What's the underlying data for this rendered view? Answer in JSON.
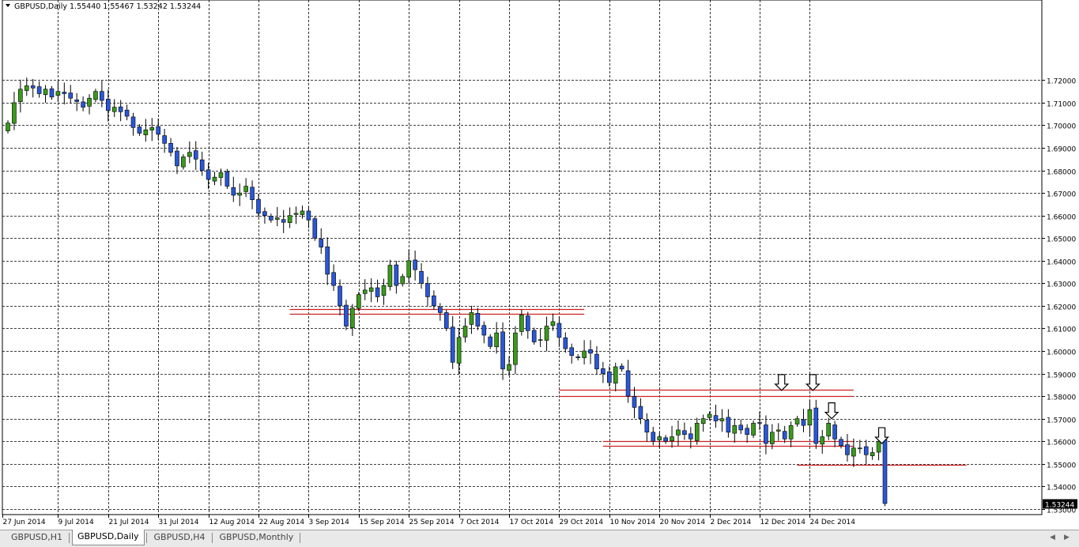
{
  "chart_data": {
    "type": "candlestick",
    "symbol_header": "GBPUSD,Daily",
    "ohlc_header": "1.55440 1.55467 1.53242 1.53244",
    "current_price_label": "1.53244",
    "ylim": [
      1.5275,
      1.7555
    ],
    "y_ticks": [
      "1.72000",
      "1.71000",
      "1.70000",
      "1.69000",
      "1.68000",
      "1.67000",
      "1.66000",
      "1.65000",
      "1.64000",
      "1.63000",
      "1.62000",
      "1.61000",
      "1.60000",
      "1.59000",
      "1.58000",
      "1.57000",
      "1.56000",
      "1.55000",
      "1.54000",
      "1.53000"
    ],
    "x_ticks": [
      {
        "i": 0,
        "label": "27 Jun 2014"
      },
      {
        "i": 8,
        "label": "9 Jul 2014"
      },
      {
        "i": 16,
        "label": "21 Jul 2014"
      },
      {
        "i": 24,
        "label": "31 Jul 2014"
      },
      {
        "i": 32,
        "label": "12 Aug 2014"
      },
      {
        "i": 40,
        "label": "22 Aug 2014"
      },
      {
        "i": 48,
        "label": "3 Sep 2014"
      },
      {
        "i": 56,
        "label": "15 Sep 2014"
      },
      {
        "i": 64,
        "label": "25 Sep 2014"
      },
      {
        "i": 72,
        "label": "7 Oct 2014"
      },
      {
        "i": 80,
        "label": "17 Oct 2014"
      },
      {
        "i": 88,
        "label": "29 Oct 2014"
      },
      {
        "i": 96,
        "label": "10 Nov 2014"
      },
      {
        "i": 104,
        "label": "20 Nov 2014"
      },
      {
        "i": 112,
        "label": "2 Dec 2014"
      },
      {
        "i": 120,
        "label": "12 Dec 2014"
      },
      {
        "i": 128,
        "label": "24 Dec 2014"
      }
    ],
    "bull_color": "#3a9a1a",
    "bear_color": "#2a57d8",
    "level_color": "#cc2222",
    "grid": true,
    "closes": [
      1.701,
      1.71,
      1.716,
      1.7175,
      1.7165,
      1.714,
      1.716,
      1.7125,
      1.715,
      1.714,
      1.712,
      1.7105,
      1.708,
      1.712,
      1.715,
      1.711,
      1.7065,
      1.708,
      1.706,
      1.704,
      1.699,
      1.6965,
      1.698,
      1.699,
      1.696,
      1.692,
      1.688,
      1.682,
      1.686,
      1.688,
      1.685,
      1.68,
      1.676,
      1.677,
      1.679,
      1.673,
      1.669,
      1.67,
      1.673,
      1.667,
      1.661,
      1.66,
      1.658,
      1.659,
      1.657,
      1.66,
      1.661,
      1.662,
      1.658,
      1.65,
      1.646,
      1.634,
      1.629,
      1.62,
      1.611,
      1.619,
      1.625,
      1.627,
      1.628,
      1.624,
      1.629,
      1.638,
      1.629,
      1.633,
      1.64,
      1.636,
      1.63,
      1.624,
      1.62,
      1.617,
      1.61,
      1.595,
      1.606,
      1.611,
      1.617,
      1.611,
      1.607,
      1.602,
      1.608,
      1.592,
      1.594,
      1.608,
      1.616,
      1.609,
      1.604,
      1.605,
      1.611,
      1.613,
      1.606,
      1.601,
      1.598,
      1.597,
      1.6,
      1.599,
      1.592,
      1.59,
      1.586,
      1.593,
      1.592,
      1.58,
      1.575,
      1.57,
      1.564,
      1.56,
      1.562,
      1.56,
      1.562,
      1.565,
      1.563,
      1.561,
      1.568,
      1.57,
      1.572,
      1.569,
      1.57,
      1.564,
      1.567,
      1.565,
      1.563,
      1.568,
      1.568,
      1.559,
      1.564,
      1.565,
      1.561,
      1.567,
      1.57,
      1.567,
      1.574,
      1.559,
      1.562,
      1.568,
      1.561,
      1.558,
      1.554,
      1.557,
      1.557,
      1.554,
      1.555,
      1.56,
      1.5324
    ]
  },
  "levels": [
    {
      "x_start_i": 45,
      "x_end_i": 92,
      "prices": [
        1.6185,
        1.6165
      ]
    },
    {
      "x_start_i": 88,
      "x_end_i": 135,
      "prices": [
        1.583,
        1.58
      ]
    },
    {
      "x_start_i": 95,
      "x_end_i": 135,
      "prices": [
        1.56,
        1.558
      ]
    },
    {
      "x_start_i": 126,
      "x_end_i": 153,
      "prices": [
        1.5495
      ]
    }
  ],
  "arrows": [
    {
      "i": 123.5,
      "price": 1.5825
    },
    {
      "i": 128.5,
      "price": 1.5825
    },
    {
      "i": 131.5,
      "price": 1.57
    },
    {
      "i": 139.5,
      "price": 1.559
    }
  ],
  "tabs": [
    {
      "label": "GBPUSD,H1",
      "active": false
    },
    {
      "label": "GBPUSD,Daily",
      "active": true
    },
    {
      "label": "GBPUSD,H4",
      "active": false
    },
    {
      "label": "GBPUSD,Monthly",
      "active": false
    }
  ]
}
